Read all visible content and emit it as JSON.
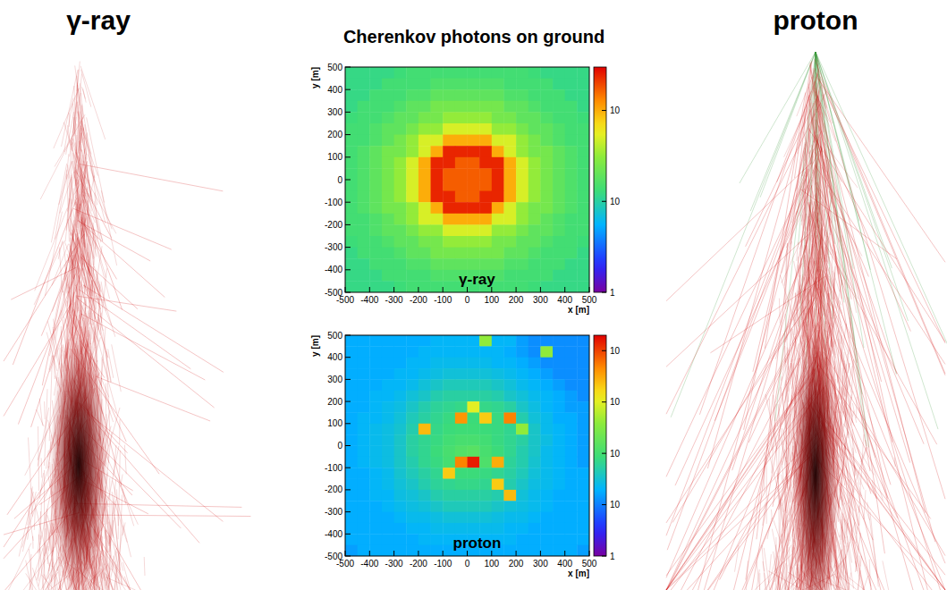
{
  "figure": {
    "title": "Cherenkov photons on ground",
    "left_label": "γ-ray",
    "right_label": "proton"
  },
  "chart_data": [
    {
      "type": "heatmap",
      "annotations": [
        "γ-ray"
      ],
      "x_label": "x [m]",
      "y_label": "y [m]",
      "xlim": [
        -500,
        500
      ],
      "ylim": [
        -500,
        500
      ],
      "xticks": [
        -500,
        -400,
        -300,
        -200,
        -100,
        0,
        100,
        200,
        300,
        400,
        500
      ],
      "yticks": [
        -500,
        -400,
        -300,
        -200,
        -100,
        0,
        100,
        200,
        300,
        400,
        500
      ],
      "x": [
        -475,
        -425,
        -375,
        -325,
        -275,
        -225,
        -175,
        -125,
        -75,
        -25,
        25,
        75,
        125,
        175,
        225,
        275,
        325,
        375,
        425,
        475
      ],
      "y": [
        475,
        425,
        375,
        325,
        275,
        225,
        175,
        125,
        75,
        25,
        -25,
        -75,
        -125,
        -175,
        -225,
        -275,
        -325,
        -375,
        -425,
        -475
      ],
      "cells": [
        [
          12,
          12,
          12,
          12,
          13,
          14,
          14,
          14,
          14,
          14,
          14,
          14,
          14,
          14,
          14,
          13,
          12,
          12,
          12,
          12
        ],
        [
          12,
          12,
          12,
          14,
          14,
          14,
          14,
          16,
          16,
          16,
          16,
          16,
          16,
          14,
          14,
          14,
          14,
          12,
          12,
          12
        ],
        [
          12,
          12,
          14,
          14,
          14,
          16,
          16,
          19,
          19,
          19,
          19,
          19,
          19,
          16,
          16,
          14,
          14,
          14,
          12,
          12
        ],
        [
          12,
          14,
          14,
          14,
          16,
          19,
          19,
          24,
          24,
          24,
          24,
          24,
          24,
          19,
          19,
          16,
          14,
          14,
          14,
          12
        ],
        [
          13,
          14,
          14,
          16,
          19,
          19,
          24,
          24,
          32,
          32,
          32,
          32,
          24,
          24,
          19,
          19,
          16,
          14,
          14,
          13
        ],
        [
          14,
          14,
          16,
          19,
          19,
          24,
          32,
          32,
          50,
          50,
          50,
          50,
          32,
          32,
          24,
          19,
          19,
          16,
          14,
          14
        ],
        [
          14,
          14,
          16,
          19,
          24,
          32,
          50,
          50,
          100,
          100,
          100,
          100,
          50,
          50,
          32,
          24,
          19,
          16,
          14,
          14
        ],
        [
          14,
          16,
          19,
          24,
          24,
          32,
          50,
          100,
          240,
          240,
          240,
          240,
          100,
          50,
          32,
          24,
          24,
          19,
          16,
          14
        ],
        [
          14,
          16,
          19,
          24,
          32,
          50,
          100,
          240,
          240,
          170,
          170,
          240,
          240,
          100,
          50,
          32,
          24,
          19,
          16,
          14
        ],
        [
          14,
          16,
          19,
          24,
          32,
          50,
          100,
          240,
          170,
          170,
          170,
          170,
          240,
          100,
          50,
          32,
          24,
          19,
          16,
          14
        ],
        [
          14,
          16,
          19,
          24,
          32,
          50,
          100,
          240,
          170,
          170,
          170,
          170,
          240,
          100,
          50,
          32,
          24,
          19,
          16,
          14
        ],
        [
          14,
          16,
          19,
          24,
          32,
          50,
          100,
          240,
          240,
          170,
          170,
          240,
          240,
          100,
          50,
          32,
          24,
          19,
          16,
          14
        ],
        [
          14,
          16,
          19,
          24,
          24,
          32,
          50,
          100,
          240,
          240,
          240,
          240,
          100,
          50,
          32,
          24,
          24,
          19,
          16,
          14
        ],
        [
          14,
          14,
          16,
          19,
          24,
          32,
          50,
          50,
          100,
          100,
          100,
          100,
          50,
          50,
          32,
          24,
          19,
          16,
          14,
          14
        ],
        [
          14,
          14,
          16,
          19,
          19,
          24,
          32,
          32,
          50,
          50,
          50,
          50,
          32,
          32,
          24,
          19,
          19,
          16,
          14,
          14
        ],
        [
          13,
          14,
          14,
          16,
          19,
          19,
          24,
          24,
          32,
          32,
          32,
          32,
          24,
          24,
          19,
          19,
          16,
          14,
          14,
          13
        ],
        [
          12,
          14,
          14,
          14,
          16,
          19,
          19,
          24,
          24,
          24,
          24,
          24,
          24,
          19,
          19,
          16,
          14,
          14,
          14,
          12
        ],
        [
          12,
          12,
          14,
          14,
          14,
          16,
          16,
          19,
          19,
          19,
          19,
          19,
          19,
          16,
          16,
          14,
          14,
          14,
          12,
          12
        ],
        [
          12,
          12,
          12,
          14,
          14,
          14,
          14,
          16,
          16,
          16,
          16,
          16,
          16,
          14,
          14,
          14,
          14,
          12,
          12,
          12
        ],
        [
          12,
          12,
          12,
          12,
          13,
          14,
          14,
          14,
          14,
          14,
          14,
          14,
          14,
          14,
          14,
          13,
          12,
          12,
          12,
          12
        ]
      ],
      "color_range": [
        1,
        300
      ],
      "color_ticks": [
        1,
        10,
        {
          "value": 100,
          "label": "10"
        }
      ]
    },
    {
      "type": "heatmap",
      "annotations": [
        "proton"
      ],
      "x_label": "x [m]",
      "y_label": "y [m]",
      "xlim": [
        -500,
        500
      ],
      "ylim": [
        -500,
        500
      ],
      "xticks": [
        -500,
        -400,
        -300,
        -200,
        -100,
        0,
        100,
        200,
        300,
        400,
        500
      ],
      "yticks": [
        -500,
        -400,
        -300,
        -200,
        -100,
        0,
        100,
        200,
        300,
        400,
        500
      ],
      "x": [
        -475,
        -425,
        -375,
        -325,
        -275,
        -225,
        -175,
        -125,
        -75,
        -25,
        25,
        75,
        125,
        175,
        225,
        275,
        325,
        375,
        425,
        475
      ],
      "y": [
        475,
        425,
        375,
        325,
        275,
        225,
        175,
        125,
        75,
        25,
        -25,
        -75,
        -125,
        -175,
        -225,
        -275,
        -325,
        -375,
        -425,
        -475
      ],
      "cells": [
        [
          18,
          18,
          18,
          18,
          18,
          18,
          18,
          21,
          21,
          21,
          21,
          400,
          21,
          21,
          15,
          12,
          12,
          12,
          12,
          12
        ],
        [
          18,
          18,
          18,
          18,
          18,
          18,
          21,
          21,
          21,
          21,
          21,
          21,
          21,
          18,
          15,
          12,
          400,
          12,
          12,
          12
        ],
        [
          18,
          18,
          18,
          18,
          18,
          21,
          21,
          24,
          24,
          24,
          24,
          24,
          21,
          21,
          18,
          15,
          12,
          12,
          12,
          12
        ],
        [
          18,
          18,
          18,
          18,
          21,
          21,
          24,
          27,
          30,
          30,
          30,
          30,
          27,
          24,
          21,
          18,
          15,
          12,
          12,
          12
        ],
        [
          18,
          18,
          18,
          21,
          21,
          24,
          30,
          36,
          42,
          42,
          42,
          42,
          36,
          30,
          24,
          21,
          18,
          15,
          12,
          12
        ],
        [
          18,
          18,
          21,
          21,
          24,
          30,
          36,
          48,
          54,
          54,
          54,
          54,
          48,
          36,
          30,
          24,
          21,
          18,
          15,
          12
        ],
        [
          18,
          18,
          21,
          24,
          27,
          36,
          48,
          60,
          66,
          72,
          1000,
          72,
          66,
          54,
          36,
          27,
          21,
          18,
          15,
          15
        ],
        [
          18,
          21,
          21,
          24,
          30,
          42,
          54,
          66,
          78,
          4000,
          84,
          2000,
          78,
          5000,
          48,
          30,
          24,
          18,
          18,
          15
        ],
        [
          18,
          21,
          24,
          27,
          33,
          48,
          2500,
          72,
          84,
          90,
          90,
          84,
          78,
          66,
          400,
          36,
          24,
          21,
          18,
          15
        ],
        [
          18,
          21,
          24,
          27,
          36,
          54,
          66,
          78,
          96,
          108,
          108,
          96,
          78,
          66,
          54,
          36,
          27,
          21,
          18,
          15
        ],
        [
          18,
          21,
          24,
          27,
          36,
          54,
          66,
          84,
          108,
          132,
          144,
          108,
          84,
          66,
          48,
          36,
          24,
          21,
          18,
          15
        ],
        [
          18,
          21,
          24,
          27,
          36,
          48,
          66,
          78,
          102,
          5000,
          15000,
          120,
          3000,
          60,
          48,
          33,
          24,
          21,
          18,
          15
        ],
        [
          18,
          18,
          21,
          24,
          33,
          42,
          54,
          66,
          2000,
          84,
          84,
          78,
          66,
          54,
          42,
          30,
          24,
          21,
          18,
          18
        ],
        [
          18,
          18,
          21,
          24,
          30,
          36,
          48,
          60,
          66,
          72,
          72,
          66,
          2000,
          48,
          36,
          27,
          24,
          21,
          18,
          18
        ],
        [
          18,
          18,
          21,
          21,
          27,
          30,
          36,
          48,
          54,
          54,
          54,
          54,
          48,
          2500,
          30,
          24,
          21,
          18,
          18,
          18
        ],
        [
          18,
          18,
          18,
          21,
          24,
          27,
          30,
          36,
          42,
          42,
          42,
          42,
          36,
          30,
          27,
          24,
          21,
          18,
          18,
          18
        ],
        [
          18,
          18,
          18,
          18,
          21,
          24,
          24,
          27,
          30,
          30,
          30,
          30,
          27,
          24,
          24,
          21,
          18,
          18,
          18,
          18
        ],
        [
          18,
          18,
          18,
          18,
          18,
          21,
          21,
          24,
          24,
          24,
          24,
          24,
          24,
          21,
          21,
          18,
          18,
          18,
          18,
          18
        ],
        [
          18,
          18,
          18,
          18,
          18,
          18,
          21,
          21,
          21,
          21,
          21,
          21,
          21,
          21,
          18,
          18,
          18,
          18,
          18,
          18
        ],
        [
          15,
          18,
          18,
          18,
          18,
          18,
          18,
          18,
          18,
          18,
          18,
          18,
          18,
          18,
          18,
          18,
          18,
          18,
          18,
          15
        ]
      ],
      "color_range": [
        1,
        20000
      ],
      "color_ticks": [
        1,
        10,
        {
          "value": 100,
          "label": "10"
        },
        {
          "value": 1000,
          "label": "10"
        },
        {
          "value": 10000,
          "label": "10"
        }
      ]
    }
  ]
}
